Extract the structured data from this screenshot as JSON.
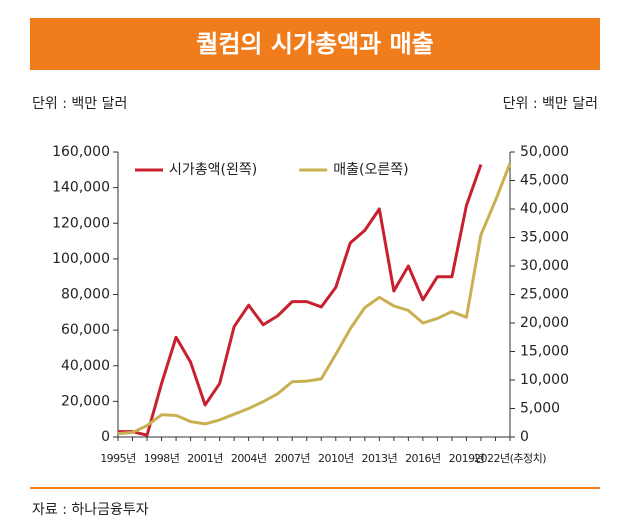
{
  "chart_data": {
    "type": "line",
    "title": "퀄컴의 시가총액과 매출",
    "y_unit_left": "단위 : 백만 달러",
    "y_unit_right": "단위 : 백만 달러",
    "source": "자료 : 하나금융투자",
    "categories": [
      "1995년",
      null,
      null,
      "1998년",
      null,
      null,
      "2001년",
      null,
      null,
      "2004년",
      null,
      null,
      "2007년",
      null,
      null,
      "2010년",
      null,
      null,
      "2013년",
      null,
      null,
      "2016년",
      null,
      null,
      "2019년",
      null,
      null,
      "2022년(추정치)"
    ],
    "series": [
      {
        "name": "시가총액(왼쪽)",
        "color": "#c8202f",
        "axis": "y",
        "values": [
          3000,
          3000,
          1000,
          30000,
          56000,
          42000,
          18000,
          30000,
          62000,
          74000,
          63000,
          68000,
          76000,
          76000,
          73000,
          84000,
          109000,
          116000,
          128000,
          82000,
          96000,
          77000,
          90000,
          90000,
          130000,
          153000,
          null,
          null
        ]
      },
      {
        "name": "매출(오른쪽)",
        "color": "#c9b052",
        "axis": "y2",
        "values": [
          600,
          800,
          2000,
          3900,
          3800,
          2700,
          2300,
          3000,
          4000,
          5000,
          6200,
          7600,
          9700,
          9800,
          10200,
          14500,
          19000,
          22700,
          24500,
          23000,
          22200,
          20000,
          20800,
          22000,
          21000,
          35500,
          41500,
          48000
        ]
      }
    ],
    "ylim": [
      0,
      160000
    ],
    "yticks": [
      0,
      {
        "value": 20000,
        "label": "20,000"
      },
      {
        "value": 40000,
        "label": "40,000"
      },
      {
        "value": 60000,
        "label": "60,000"
      },
      {
        "value": 80000,
        "label": "80,000"
      },
      {
        "value": 100000,
        "label": "100,000"
      },
      {
        "value": 120000,
        "label": "120,000"
      },
      {
        "value": 140000,
        "label": "140,000"
      },
      {
        "value": 160000,
        "label": "160,000"
      }
    ],
    "y2lim": [
      0,
      50000
    ],
    "y2ticks": [
      0,
      {
        "value": 5000,
        "label": "5,000"
      },
      {
        "value": 10000,
        "label": "10,000"
      },
      {
        "value": 15000,
        "label": "15,000"
      },
      {
        "value": 20000,
        "label": "20,000"
      },
      {
        "value": 25000,
        "label": "25,000"
      },
      {
        "value": 30000,
        "label": "30,000"
      },
      {
        "value": 35000,
        "label": "35,000"
      },
      {
        "value": 40000,
        "label": "40,000"
      },
      {
        "value": 45000,
        "label": "45,000"
      },
      {
        "value": 50000,
        "label": "50,000"
      }
    ],
    "grid": false,
    "legend": "top-left"
  }
}
